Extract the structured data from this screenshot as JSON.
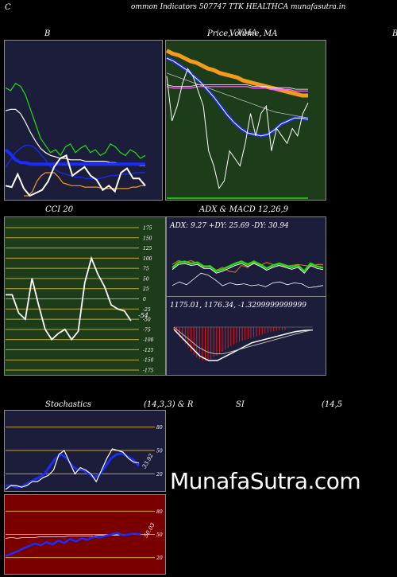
{
  "header": {
    "corner_letter": "C",
    "title": "ommon  Indicators 507747 TTK HEALTHCA munafasutra.in"
  },
  "panels": {
    "bb": {
      "title": "B"
    },
    "price": {
      "title_a": "Price,",
      "title_b": "Volume,",
      "title_c": "MA",
      "title_overlay": "VMA"
    },
    "cut": {
      "title": "B"
    },
    "cci": {
      "title": "CCI 20",
      "last_label": "-54"
    },
    "adx": {
      "title": "ADX  & MACD 12,26,9",
      "values": "ADX: 9.27 +DY: 25.69 -DY: 30.94"
    },
    "macd": {
      "values": "1175.01,  1176.34,  -1.3299999999999"
    },
    "stoch": {
      "title_a": "Stochastics",
      "title_b": "(14,3,3) & R",
      "last_label": "33.92"
    },
    "rsi": {
      "title_a": "SI",
      "title_b": "(14,5",
      "last_label": "50.03"
    }
  },
  "watermark": "MunafaSutra.com",
  "colors": {
    "navy": "#1c1d3a",
    "green": "#1d3d1a",
    "red": "#7a0000",
    "orange": "#f59a1a",
    "blue": "#1a2cff",
    "lime": "#22dd11"
  },
  "chart_data": [
    {
      "type": "line",
      "id": "bollinger",
      "ylim": [
        0,
        100
      ],
      "series": [
        {
          "values": [
            75,
            73,
            78,
            76,
            70,
            60,
            50,
            40,
            35,
            30,
            32,
            28,
            34,
            36,
            30,
            33,
            35,
            30,
            32,
            28,
            30,
            36,
            34,
            30,
            28,
            32,
            30,
            26,
            28
          ]
        },
        {
          "values": [
            59,
            60,
            60,
            57,
            51,
            44,
            38,
            33,
            30,
            28,
            27,
            26,
            26,
            25,
            25,
            25,
            24,
            24,
            24,
            24,
            24,
            23,
            23,
            22,
            22,
            22,
            22,
            21,
            21
          ]
        },
        {
          "values": [
            32,
            29,
            25,
            23,
            23,
            22,
            22,
            22,
            22,
            22,
            22,
            22,
            22,
            22,
            22,
            22,
            22,
            22,
            22,
            22,
            22,
            22,
            22,
            22,
            22,
            22,
            22,
            22,
            22
          ]
        },
        {
          "values": [
            20,
            25,
            30,
            33,
            35,
            35,
            33,
            29,
            25,
            20,
            18,
            16,
            15,
            14,
            13,
            13,
            12,
            12,
            12,
            12,
            13,
            14,
            14,
            15,
            15,
            15,
            16,
            16,
            16
          ]
        },
        {
          "values": [
            0,
            0,
            3,
            10,
            14,
            16,
            16,
            16,
            13,
            9,
            8,
            7,
            7,
            7,
            6,
            6,
            6,
            6,
            5,
            5,
            5,
            5,
            5,
            5,
            5,
            6,
            6,
            7,
            7
          ]
        },
        {
          "values": [
            7,
            6,
            15,
            5,
            0,
            2,
            4,
            10,
            20,
            26,
            28,
            14,
            17,
            20,
            14,
            11,
            4,
            7,
            3,
            16,
            19,
            12,
            12,
            7
          ]
        }
      ]
    },
    {
      "type": "line",
      "id": "price_ma",
      "ylim": [
        0,
        100
      ],
      "series": [
        {
          "values": [
            97,
            95,
            94,
            92,
            90,
            89,
            87,
            85,
            84,
            82,
            81,
            80,
            79,
            77,
            76,
            75,
            74,
            73,
            72,
            71,
            70,
            69,
            68,
            67,
            67
          ]
        },
        {
          "values": [
            92,
            90,
            87,
            84,
            80,
            76,
            71,
            66,
            60,
            54,
            49,
            45,
            42,
            41,
            40,
            41,
            44,
            48,
            50,
            52,
            52,
            51
          ]
        },
        {
          "values": [
            73,
            72,
            72,
            72,
            72,
            73,
            73,
            73,
            73,
            73,
            73,
            73,
            73,
            73,
            72,
            72,
            72,
            71,
            71,
            71,
            71,
            70,
            70,
            70
          ]
        },
        {
          "values": [
            82,
            80,
            78,
            76,
            74,
            72,
            70,
            68,
            66,
            64,
            62,
            60,
            58,
            56,
            55,
            54,
            53,
            52
          ]
        },
        {
          "values": [
            80,
            50,
            60,
            75,
            85,
            80,
            70,
            60,
            30,
            20,
            5,
            10,
            30,
            25,
            20,
            35,
            55,
            40,
            55,
            60,
            30,
            45,
            40,
            35,
            45,
            40,
            55,
            62
          ]
        }
      ]
    },
    {
      "type": "line",
      "id": "cci",
      "ylim": [
        -175,
        175
      ],
      "ticks": [
        175,
        150,
        125,
        100,
        75,
        50,
        25,
        0,
        -25,
        -50,
        -75,
        -100,
        -125,
        -150,
        -175
      ],
      "series": [
        {
          "values": [
            10,
            10,
            -35,
            -50,
            50,
            -15,
            -75,
            -100,
            -85,
            -75,
            -100,
            -80,
            40,
            100,
            60,
            30,
            -15,
            -25,
            -30,
            -54
          ]
        }
      ]
    },
    {
      "type": "line",
      "id": "adx",
      "ylim": [
        0,
        60
      ],
      "series": [
        {
          "values": [
            25.69,
            31,
            32,
            30,
            31,
            27,
            27,
            22,
            24,
            27,
            30,
            32,
            29,
            32,
            29,
            25,
            28,
            30,
            28,
            26,
            28,
            22,
            30,
            27,
            25.69
          ]
        },
        {
          "values": [
            30.94,
            35,
            33,
            35,
            32,
            28,
            30,
            25,
            28,
            24,
            23,
            30,
            28,
            33,
            30,
            33,
            31,
            30,
            29,
            30,
            31,
            30,
            29,
            31,
            30.94
          ]
        },
        {
          "values": [
            9.27,
            13,
            10,
            16,
            22,
            20,
            15,
            9,
            12,
            10,
            11,
            9,
            10,
            8,
            12,
            13,
            10,
            12,
            11,
            7,
            8,
            9.27
          ]
        }
      ]
    },
    {
      "type": "line",
      "id": "macd",
      "ylim": [
        -20,
        5
      ],
      "series": [
        {
          "values": [
            -1,
            -5,
            -9,
            -13,
            -15,
            -15,
            -13,
            -11,
            -9,
            -7,
            -6,
            -5,
            -4,
            -3,
            -2,
            -1.5,
            -1.33
          ]
        },
        {
          "values": [
            0,
            -3,
            -6,
            -9,
            -11,
            -12,
            -12,
            -11,
            -10,
            -9,
            -8,
            -7,
            -6,
            -5,
            -4,
            -3,
            -2,
            -1.3
          ]
        }
      ]
    },
    {
      "type": "line",
      "id": "stochastics",
      "ylim": [
        0,
        100
      ],
      "ticks": [
        80,
        50,
        20
      ],
      "series": [
        {
          "values": [
            0,
            5,
            5,
            3,
            5,
            10,
            10,
            15,
            18,
            25,
            45,
            50,
            35,
            20,
            28,
            25,
            20,
            10,
            25,
            40,
            52,
            50,
            48,
            40,
            35,
            33.92
          ]
        },
        {
          "values": [
            5,
            5,
            3,
            4,
            8,
            12,
            15,
            20,
            30,
            40,
            45,
            40,
            30,
            25,
            25,
            20,
            15,
            20,
            30,
            40,
            45,
            46,
            42,
            38,
            30
          ]
        }
      ]
    },
    {
      "type": "line",
      "id": "rsi",
      "ylim": [
        0,
        100
      ],
      "ticks": [
        80,
        50,
        20
      ],
      "series": [
        {
          "values": [
            22,
            25,
            28,
            32,
            35,
            38,
            36,
            40,
            37,
            42,
            39,
            44,
            41,
            45,
            43,
            47,
            46,
            48,
            50,
            52,
            49,
            50,
            51,
            50.03
          ]
        },
        {
          "values": [
            45,
            46,
            45,
            46,
            46,
            46,
            47,
            47,
            47,
            47,
            47,
            48,
            48,
            48,
            48,
            48,
            49,
            49,
            49,
            49,
            50,
            50,
            50,
            50
          ]
        }
      ]
    }
  ]
}
